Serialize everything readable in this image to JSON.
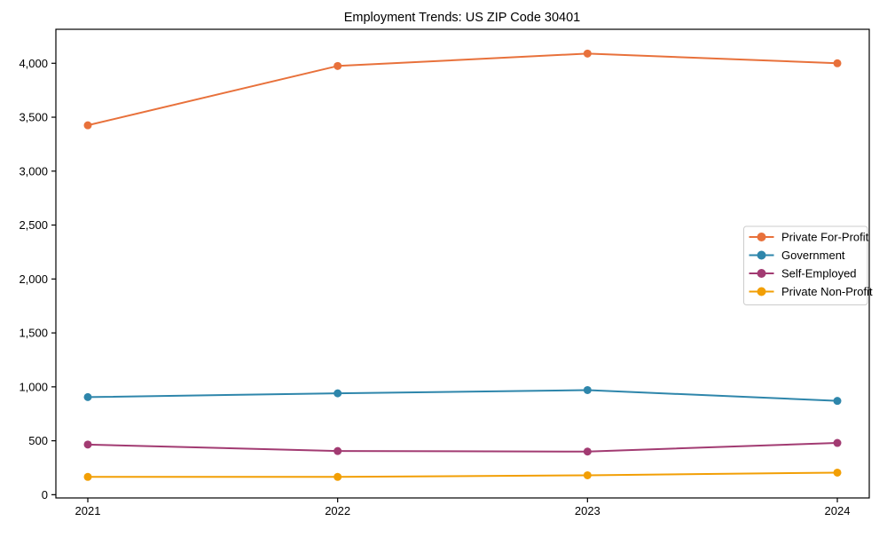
{
  "figure": {
    "background": "#ffffff",
    "spine_color": "#000000",
    "legend_border_color": "#cccccc"
  },
  "chart_data": {
    "type": "line",
    "title": "Employment Trends: US ZIP Code 30401",
    "xlabel": "",
    "ylabel": "",
    "categories": [
      2021,
      2022,
      2023,
      2024
    ],
    "x_tick_labels": [
      "2021",
      "2022",
      "2023",
      "2024"
    ],
    "y_ticks": [
      0,
      500,
      1000,
      1500,
      2000,
      2500,
      3000,
      3500,
      4000
    ],
    "y_tick_labels": [
      "0",
      "500",
      "1,000",
      "1,500",
      "2,000",
      "2,500",
      "3,000",
      "3,500",
      "4,000"
    ],
    "ylim": [
      -30,
      4315
    ],
    "grid": false,
    "legend_position": "center right",
    "marker": "circle",
    "series": [
      {
        "name": "Private For-Profit",
        "color": "#E8713B",
        "values": [
          3425,
          3975,
          4090,
          4000
        ]
      },
      {
        "name": "Government",
        "color": "#2E86AB",
        "values": [
          905,
          940,
          970,
          870
        ]
      },
      {
        "name": "Self-Employed",
        "color": "#A23B72",
        "values": [
          465,
          405,
          400,
          480
        ]
      },
      {
        "name": "Private Non-Profit",
        "color": "#F29F05",
        "values": [
          165,
          165,
          180,
          205
        ]
      }
    ]
  }
}
